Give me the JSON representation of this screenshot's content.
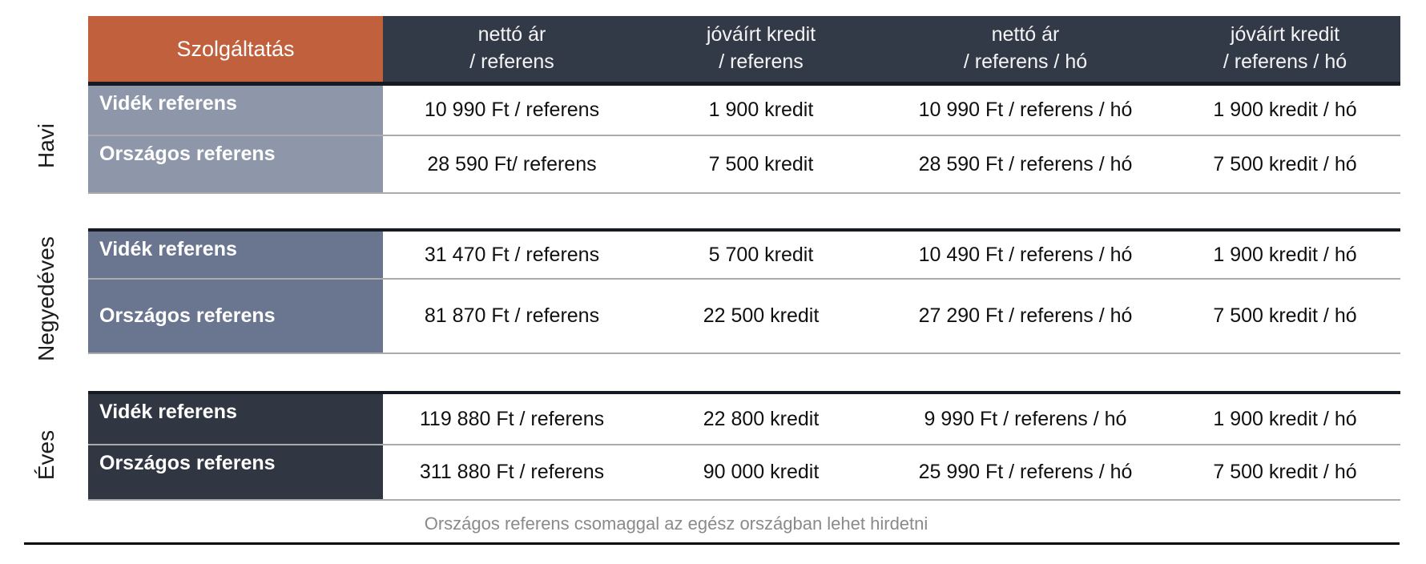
{
  "header": {
    "service": "Szolgáltatás",
    "columns": [
      "nettó ár\n/ referens",
      "jóváírt kredit\n/ referens",
      "nettó ár\n/ referens / hó",
      "jóváírt kredit\n/ referens / hó"
    ]
  },
  "sections": [
    {
      "period": "Havi",
      "rows": [
        {
          "label": "Vidék referens",
          "values": [
            "10 990 Ft / referens",
            "1 900 kredit",
            "10 990 Ft / referens / hó",
            "1 900 kredit / hó"
          ]
        },
        {
          "label": "Országos referens",
          "values": [
            "28 590 Ft/ referens",
            "7 500 kredit",
            "28 590 Ft / referens / hó",
            "7 500 kredit / hó"
          ]
        }
      ]
    },
    {
      "period": "Negyedéves",
      "rows": [
        {
          "label": "Vidék referens",
          "values": [
            "31 470 Ft / referens",
            "5 700 kredit",
            "10 490 Ft / referens / hó",
            "1 900 kredit / hó"
          ]
        },
        {
          "label": "Országos referens",
          "values": [
            "81 870 Ft / referens",
            "22 500 kredit",
            "27 290 Ft / referens / hó",
            "7 500 kredit / hó"
          ]
        }
      ]
    },
    {
      "period": "Éves",
      "rows": [
        {
          "label": "Vidék referens",
          "values": [
            "119 880 Ft / referens",
            "22 800 kredit",
            "9 990 Ft / referens / hó",
            "1 900 kredit / hó"
          ]
        },
        {
          "label": "Országos referens",
          "values": [
            "311 880 Ft / referens",
            "90 000 kredit",
            "25 990 Ft / referens / hó",
            "7 500 kredit / hó"
          ]
        }
      ]
    }
  ],
  "footnote": "Országos referens csomaggal az egész országban lehet hirdetni",
  "colors": {
    "accent_orange": "#c1603c",
    "header_dark": "#333a47",
    "havi_label_bg": "#8e97a9",
    "negyedeves_label_bg": "#6a768f",
    "eves_label_bg": "#303642",
    "separator_gray": "#ababab"
  }
}
